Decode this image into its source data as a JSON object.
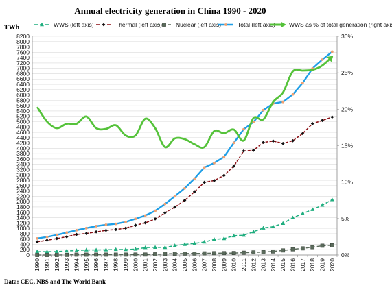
{
  "chart_data": {
    "type": "line",
    "title": "Annual electricity generation in China 1990 - 2020",
    "y_unit_label": "TWh",
    "source": "Data: CEC, NBS and The World Bank",
    "x": [
      1990,
      1991,
      1992,
      1993,
      1994,
      1995,
      1996,
      1997,
      1998,
      1999,
      2000,
      2001,
      2002,
      2003,
      2004,
      2005,
      2006,
      2007,
      2008,
      2009,
      2010,
      2011,
      2012,
      2013,
      2014,
      2015,
      2016,
      2017,
      2018,
      2019,
      2020
    ],
    "x_tick_labels": [
      "1990",
      "1991",
      "1992",
      "1993",
      "1994",
      "1995",
      "1996",
      "1997",
      "1998",
      "1999",
      "2000",
      "2001",
      "2002",
      "2003",
      "2004",
      "2005",
      "2006",
      "2007",
      "2008",
      "2009",
      "2010",
      "2011",
      "2012",
      "2013",
      "2014",
      "2015",
      "2016",
      "2017",
      "2018",
      "2019",
      "2020"
    ],
    "ylim_left": [
      0,
      8200
    ],
    "y_ticks_left": [
      0,
      200,
      400,
      600,
      800,
      1000,
      1200,
      1400,
      1600,
      1800,
      2000,
      2200,
      2400,
      2600,
      2800,
      3000,
      3200,
      3400,
      3600,
      3800,
      4000,
      4200,
      4400,
      4600,
      4800,
      5000,
      5200,
      5400,
      5600,
      5800,
      6000,
      6200,
      6400,
      6600,
      6800,
      7000,
      7200,
      7400,
      7600,
      7800,
      8000,
      8200
    ],
    "ylim_right": [
      0,
      30
    ],
    "y_ticks_right": [
      0,
      5,
      10,
      15,
      20,
      25,
      30
    ],
    "y_ticks_right_labels": [
      "0%",
      "5%",
      "10%",
      "15%",
      "20%",
      "25%",
      "30%"
    ],
    "grid": true,
    "legend_position": "top",
    "series": [
      {
        "name": "WWS (left axis)",
        "axis": "left",
        "color": "#1fae7f",
        "marker": "triangle",
        "values": [
          126,
          124,
          131,
          151,
          167,
          191,
          188,
          196,
          208,
          204,
          222,
          277,
          288,
          283,
          353,
          397,
          436,
          486,
          585,
          616,
          722,
          741,
          872,
          1012,
          1060,
          1187,
          1396,
          1550,
          1704,
          1868,
          2073
        ]
      },
      {
        "name": "Thermal (left axis)",
        "axis": "left",
        "color": "#8b0f14",
        "marker": "diamond",
        "values": [
          494,
          552,
          617,
          685,
          771,
          807,
          867,
          923,
          955,
          1005,
          1114,
          1204,
          1352,
          1580,
          1796,
          2047,
          2370,
          2723,
          2790,
          2983,
          3331,
          3900,
          3925,
          4222,
          4273,
          4184,
          4285,
          4554,
          4924,
          5046,
          5174
        ]
      },
      {
        "name": "Nuclear (left axis)",
        "axis": "left",
        "color": "#5b6b5c",
        "marker": "square",
        "values": [
          0,
          0,
          0,
          3,
          14,
          13,
          14,
          14,
          14,
          15,
          17,
          17,
          25,
          43,
          50,
          53,
          55,
          62,
          68,
          70,
          74,
          87,
          98,
          112,
          133,
          171,
          213,
          248,
          294,
          349,
          366
        ]
      },
      {
        "name": "Total (left axis)",
        "axis": "left",
        "color": "#1e9ee6",
        "marker": "circle",
        "values": [
          621,
          678,
          754,
          840,
          928,
          1007,
          1081,
          1134,
          1167,
          1239,
          1356,
          1481,
          1654,
          1911,
          2203,
          2500,
          2866,
          3282,
          3450,
          3681,
          4207,
          4713,
          4987,
          5432,
          5680,
          5740,
          6022,
          6452,
          6994,
          7326,
          7623
        ]
      },
      {
        "name": "WWS as % of total generation (right axis)",
        "axis": "right",
        "color": "#55c23a",
        "marker": "arrow",
        "values": [
          20.3,
          18.3,
          17.4,
          18.0,
          18.0,
          19.0,
          17.4,
          17.3,
          17.8,
          16.4,
          16.4,
          18.7,
          17.4,
          14.8,
          16.0,
          15.9,
          15.2,
          14.8,
          17.0,
          16.7,
          17.2,
          15.7,
          18.8,
          18.6,
          21.0,
          22.3,
          25.2,
          25.3,
          25.4,
          26.0,
          27.2
        ]
      }
    ]
  }
}
